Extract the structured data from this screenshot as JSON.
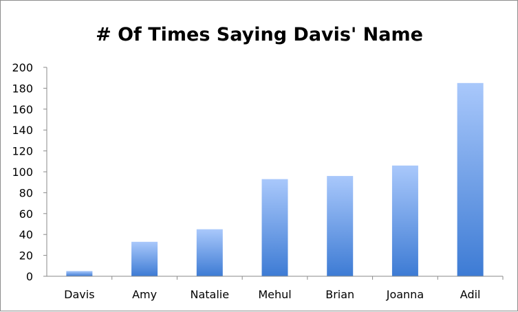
{
  "chart_data": {
    "type": "bar",
    "title": "# Of Times Saying Davis' Name",
    "xlabel": "",
    "ylabel": "",
    "categories": [
      "Davis",
      "Amy",
      "Natalie",
      "Mehul",
      "Brian",
      "Joanna",
      "Adil"
    ],
    "values": [
      5,
      33,
      45,
      93,
      96,
      106,
      185
    ],
    "ylim": [
      0,
      200
    ],
    "yticks": [
      0,
      20,
      40,
      60,
      80,
      100,
      120,
      140,
      160,
      180,
      200
    ],
    "grid": false,
    "legend": "none",
    "bar_color_top": "#a9c8fb",
    "bar_color_bottom": "#3d7bd4"
  }
}
